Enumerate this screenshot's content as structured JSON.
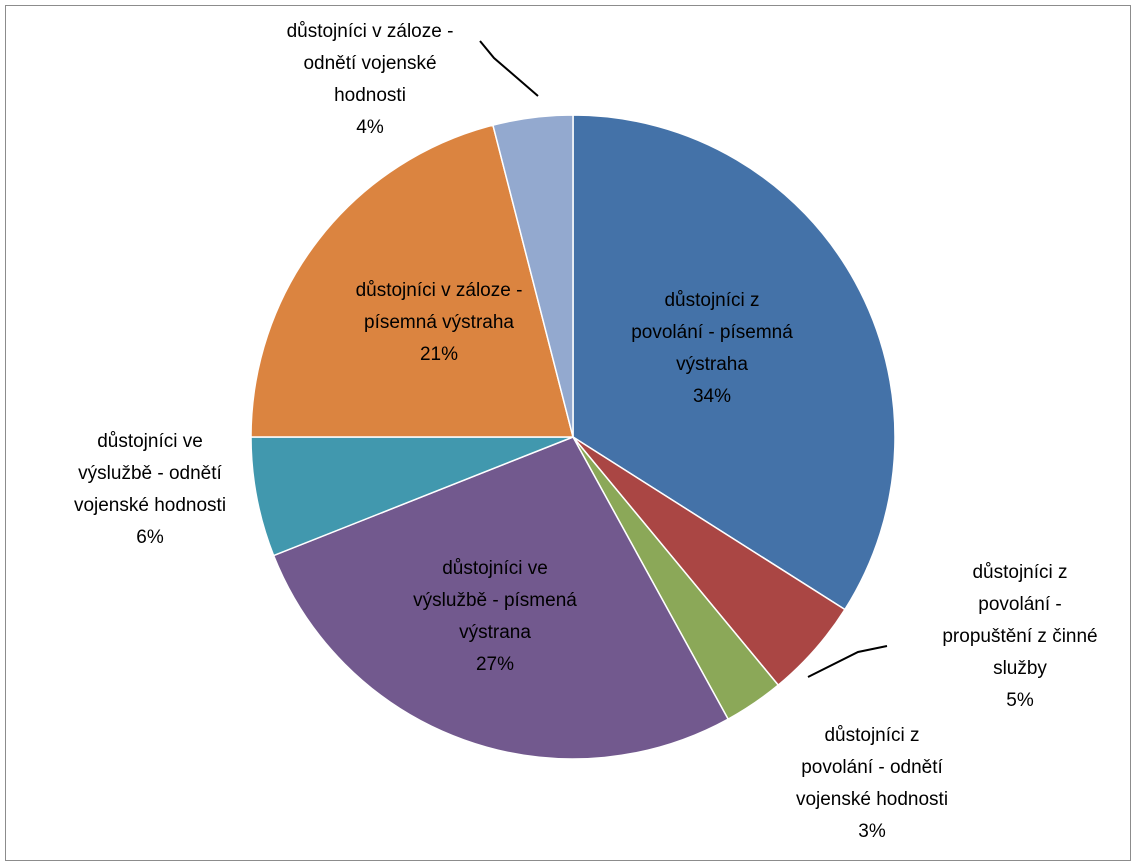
{
  "chart_data": {
    "type": "pie",
    "title": "",
    "legend": "none",
    "slices": [
      {
        "label_lines": [
          "důstojníci z",
          "povolání - písemná",
          "výstraha"
        ],
        "percent_label": "34%",
        "value": 34,
        "color": "#4472A8"
      },
      {
        "label_lines": [
          "důstojníci z",
          "povolání -",
          "propuštění z činné",
          "služby"
        ],
        "percent_label": "5%",
        "value": 5,
        "color": "#AA4644"
      },
      {
        "label_lines": [
          "důstojníci z",
          "povolání - odnětí",
          "vojenské hodnosti"
        ],
        "percent_label": "3%",
        "value": 3,
        "color": "#8BA858"
      },
      {
        "label_lines": [
          "důstojníci ve",
          "výslužbě - písmená",
          "výstrana"
        ],
        "percent_label": "27%",
        "value": 27,
        "color": "#72598E"
      },
      {
        "label_lines": [
          "důstojníci ve",
          "výslužbě - odnětí",
          "vojenské hodnosti"
        ],
        "percent_label": "6%",
        "value": 6,
        "color": "#4198AE"
      },
      {
        "label_lines": [
          "důstojníci v záloze -",
          "písemná výstraha"
        ],
        "percent_label": "21%",
        "value": 21,
        "color": "#DB8440"
      },
      {
        "label_lines": [
          "důstojníci v záloze -",
          "odnětí vojenské",
          "hodnosti"
        ],
        "percent_label": "4%",
        "value": 4,
        "color": "#93A9CF"
      }
    ]
  }
}
